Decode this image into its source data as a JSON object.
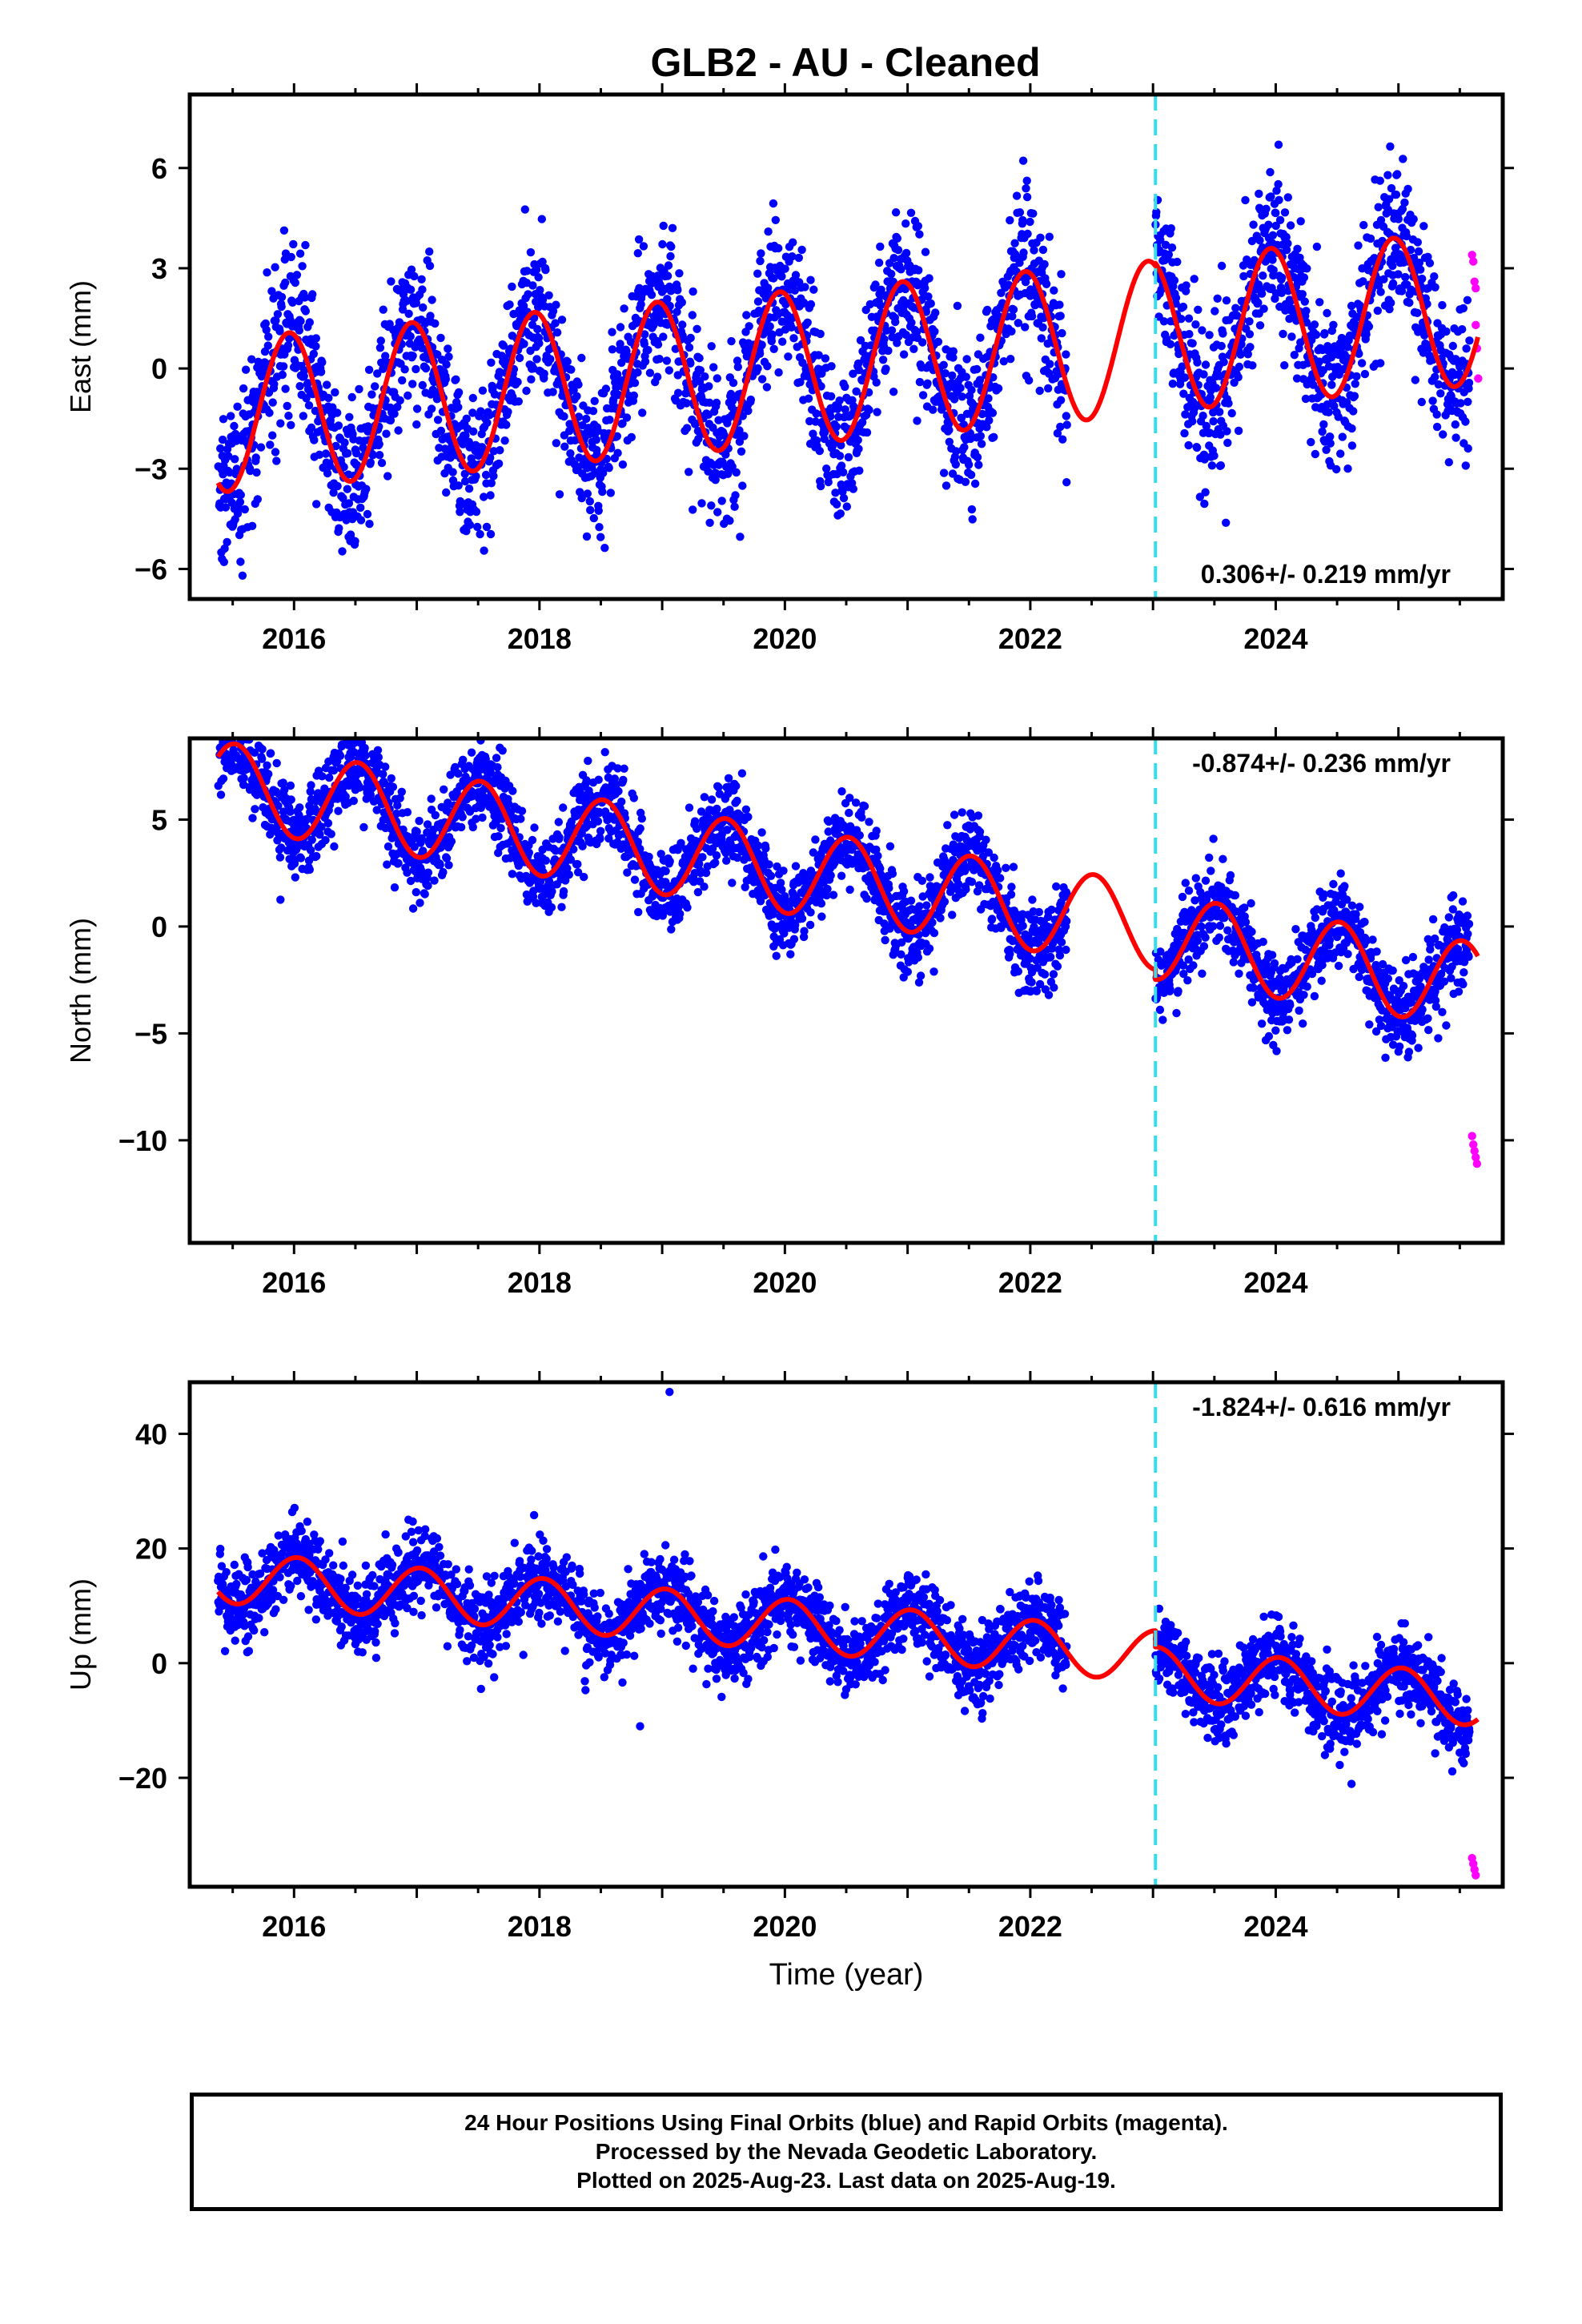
{
  "title": "GLB2  - AU - Cleaned",
  "colors": {
    "final_points": "#0000ff",
    "rapid_points": "#ff00ff",
    "model": "#ff0000",
    "equipment_change": "#33ddee"
  },
  "footer": {
    "line1": "24 Hour Positions Using Final Orbits (blue) and Rapid Orbits (magenta).",
    "line2": "Processed by the Nevada Geodetic Laboratory.",
    "line3": "Plotted on 2025-Aug-23. Last data on 2025-Aug-19."
  },
  "chart_data": [
    {
      "type": "scatter",
      "component": "east",
      "ylabel": "East (mm)",
      "xlabel": "",
      "xlim": [
        2015.15,
        2025.85
      ],
      "ylim": [
        -6.9,
        8.2
      ],
      "yticks": [
        -6,
        -3,
        0,
        3,
        6
      ],
      "xticks": [
        2016,
        2018,
        2020,
        2022,
        2024
      ],
      "rate_annotation": "0.306+/- 0.219 mm/yr",
      "offset_epoch": 2023.02,
      "model": {
        "mean_a": -0.3,
        "mean_b": 1.4,
        "trend": 0.306,
        "amplitude": 2.3,
        "peak_phase": 0.96,
        "offset": 0,
        "start": 2015.38,
        "end": 2025.65
      },
      "final_orbit_data": {
        "start": 2015.38,
        "end": 2025.58,
        "noise": 1.15,
        "gaps": [
          [
            2022.3,
            2023.02
          ]
        ]
      },
      "rapid_orbit_points": [
        [
          2025.6,
          3.4
        ],
        [
          2025.61,
          3.2
        ],
        [
          2025.62,
          2.6
        ],
        [
          2025.63,
          2.4
        ],
        [
          2025.63,
          1.3
        ],
        [
          2025.64,
          0.6
        ],
        [
          2025.65,
          -0.3
        ]
      ]
    },
    {
      "type": "scatter",
      "component": "north",
      "ylabel": "North (mm)",
      "xlabel": "",
      "xlim": [
        2015.15,
        2025.85
      ],
      "ylim": [
        -14.8,
        8.8
      ],
      "yticks": [
        -10,
        -5,
        0,
        5
      ],
      "xticks": [
        2016,
        2018,
        2020,
        2022,
        2024
      ],
      "rate_annotation": "-0.874+/- 0.236 mm/yr",
      "offset_epoch": 2023.02,
      "model": {
        "mean_a": 3.5,
        "mean_b": -1.6,
        "trend": -0.874,
        "amplitude": 2.0,
        "peak_phase": 0.52,
        "offset": -6.0,
        "start": 2015.38,
        "end": 2025.65
      },
      "final_orbit_data": {
        "start": 2015.38,
        "end": 2025.58,
        "noise": 1.0,
        "gaps": [
          [
            2022.3,
            2023.02
          ]
        ]
      },
      "rapid_orbit_points": [
        [
          2025.6,
          -9.8
        ],
        [
          2025.61,
          -10.2
        ],
        [
          2025.62,
          -10.5
        ],
        [
          2025.63,
          -10.8
        ],
        [
          2025.64,
          -11.1
        ]
      ]
    },
    {
      "type": "scatter",
      "component": "up",
      "ylabel": "Up (mm)",
      "xlabel": "Time (year)",
      "xlim": [
        2015.15,
        2025.85
      ],
      "ylim": [
        -39,
        49
      ],
      "yticks": [
        -20,
        0,
        20,
        40
      ],
      "xticks": [
        2016,
        2018,
        2020,
        2022,
        2024
      ],
      "rate_annotation": "-1.824+/- 0.616 mm/yr",
      "offset_epoch": 2023.02,
      "model": {
        "mean_a": 8.5,
        "mean_b": -4.0,
        "trend": -1.824,
        "amplitude": 4.5,
        "peak_phase": 0.03,
        "offset": -6.0,
        "start": 2015.38,
        "end": 2025.65
      },
      "final_orbit_data": {
        "start": 2015.38,
        "end": 2025.58,
        "noise": 3.4,
        "gaps": [
          [
            2022.3,
            2023.02
          ]
        ]
      },
      "outliers": [
        [
          2019.06,
          47.3
        ],
        [
          2023.05,
          9.5
        ],
        [
          2018.82,
          -11.0
        ]
      ],
      "rapid_orbit_points": [
        [
          2025.6,
          -34
        ],
        [
          2025.61,
          -35
        ],
        [
          2025.62,
          -36
        ],
        [
          2025.63,
          -37
        ]
      ]
    }
  ]
}
